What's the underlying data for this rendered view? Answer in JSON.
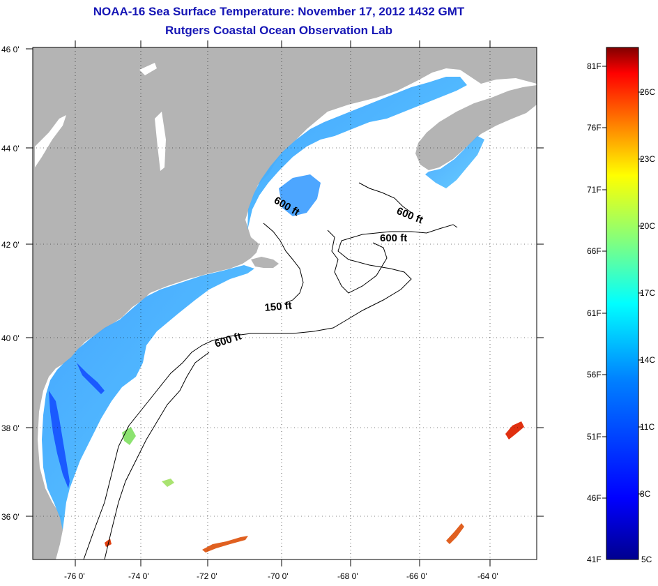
{
  "header": {
    "title": "NOAA-16 Sea Surface Temperature:  November 17, 2012 1432 GMT",
    "subtitle": "Rutgers Coastal Ocean Observation Lab"
  },
  "map": {
    "lon_labels": [
      "-76 0'",
      "-74 0'",
      "-72 0'",
      "-70 0'",
      "-68 0'",
      "-66 0'",
      "-64 0'"
    ],
    "lat_labels": [
      "46 0'",
      "44 0'",
      "42 0'",
      "40 0'",
      "38 0'",
      "36 0'"
    ],
    "contour_labels": [
      "600 ft",
      "600 ft",
      "600 ft",
      "150 ft",
      "600 ft"
    ],
    "land_color": "#b4b4b4",
    "water_color": "#ffffff"
  },
  "colorbar": {
    "fahrenheit_labels": [
      "81F",
      "76F",
      "71F",
      "66F",
      "61F",
      "56F",
      "51F",
      "46F",
      "41F"
    ],
    "celsius_labels": [
      "26C",
      "23C",
      "20C",
      "17C",
      "14C",
      "11C",
      "8C",
      "5C"
    ],
    "colors": [
      "#800000",
      "#ff0000",
      "#ff8000",
      "#ffff00",
      "#80ff80",
      "#00ffff",
      "#0080ff",
      "#0000ff",
      "#00008f"
    ]
  }
}
